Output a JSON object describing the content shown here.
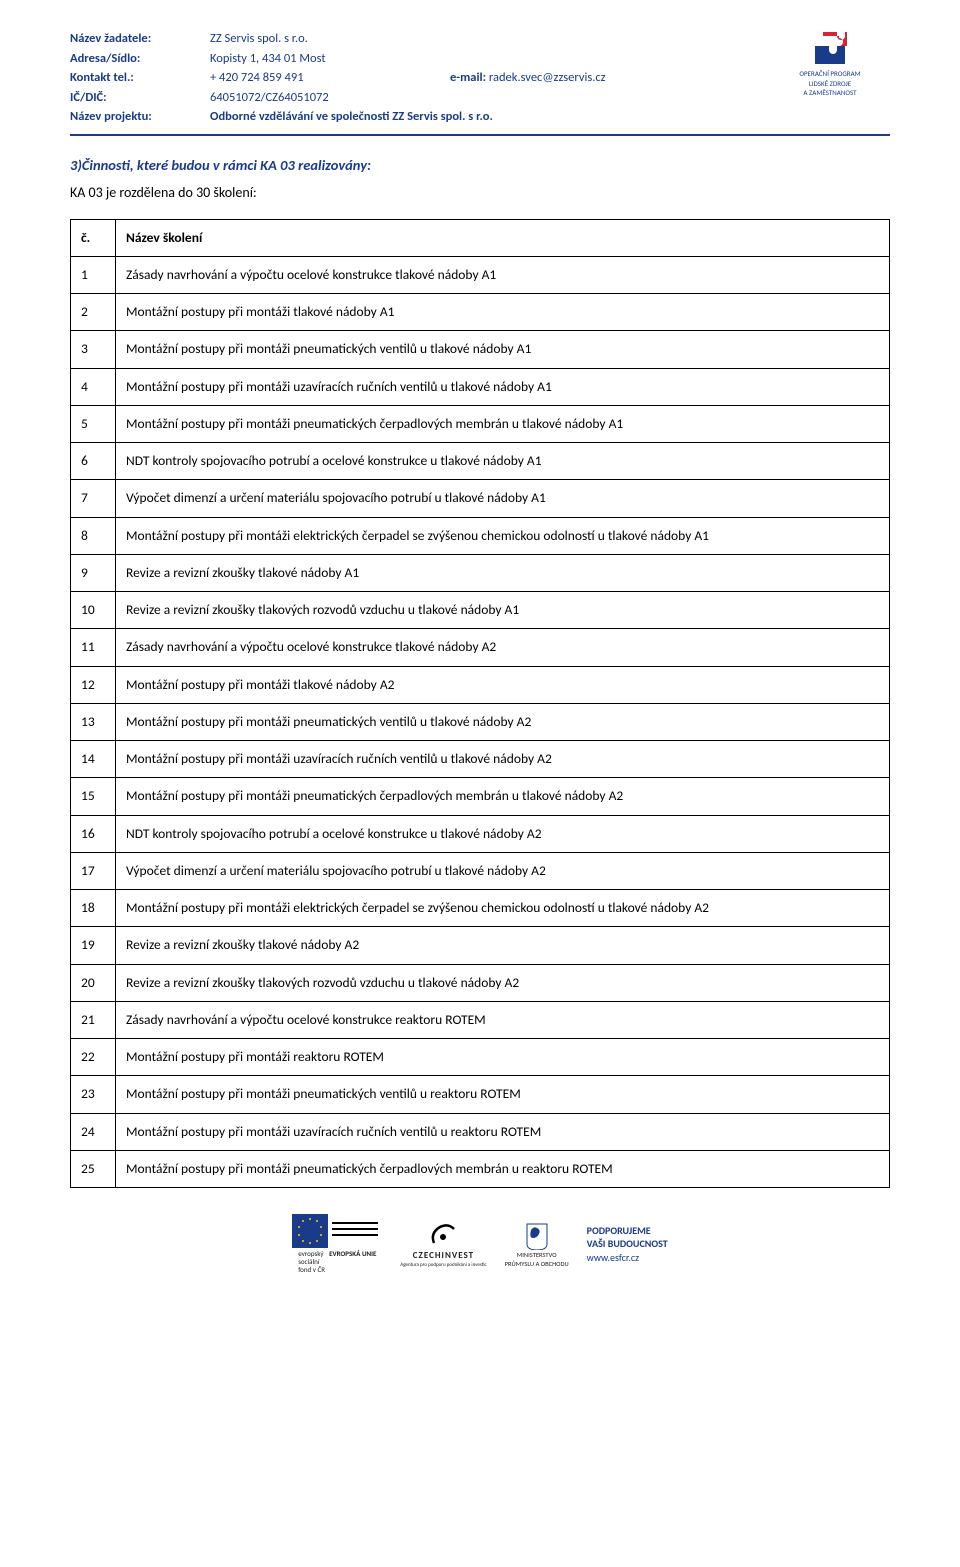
{
  "colors": {
    "accent": "#1a3a8a",
    "border": "#000000",
    "red": "#d22730",
    "background": "#ffffff"
  },
  "header": {
    "rows": [
      {
        "label": "Název žadatele:",
        "value": "ZZ Servis spol. s r.o."
      },
      {
        "label": "Adresa/Sídlo:",
        "value": "Kopisty 1, 434 01 Most"
      },
      {
        "label": "Kontakt tel.:",
        "value": "+ 420 724 859 491",
        "email_label": "e-mail:",
        "email_value": "radek.svec@zzservis.cz"
      },
      {
        "label": "IČ/DIČ:",
        "value": "64051072/CZ64051072"
      },
      {
        "label": "Název projektu:",
        "value": "Odborné vzdělávání ve společnosti ZZ Servis spol. s r.o.",
        "bold": true
      }
    ],
    "logo": {
      "line1": "OPERAČNÍ PROGRAM",
      "line2": "LIDSKÉ ZDROJE",
      "line3": "A ZAMĚSTNANOST"
    }
  },
  "section": {
    "title": "3)Činnosti, které budou v rámci KA 03 realizovány:",
    "subtitle": "KA 03 je rozdělena do 30 školení:"
  },
  "table": {
    "columns": [
      "č.",
      "Název školení"
    ],
    "rows": [
      [
        "1",
        "Zásady navrhování a výpočtu ocelové konstrukce tlakové nádoby A1"
      ],
      [
        "2",
        "Montážní postupy při montáži tlakové nádoby A1"
      ],
      [
        "3",
        "Montážní postupy při montáži pneumatických ventilů u tlakové nádoby A1"
      ],
      [
        "4",
        "Montážní postupy při montáži uzavíracích ručních ventilů u tlakové nádoby A1"
      ],
      [
        "5",
        "Montážní postupy při montáži pneumatických čerpadlových membrán u tlakové nádoby A1"
      ],
      [
        "6",
        "NDT kontroly spojovacího potrubí a ocelové konstrukce u tlakové nádoby A1"
      ],
      [
        "7",
        "Výpočet dimenzí a určení materiálu spojovacího potrubí u tlakové nádoby A1"
      ],
      [
        "8",
        "Montážní postupy při montáži elektrických čerpadel se zvýšenou chemickou odolností u tlakové nádoby A1"
      ],
      [
        "9",
        "Revize a revizní zkoušky tlakové nádoby A1"
      ],
      [
        "10",
        "Revize a revizní zkoušky tlakových rozvodů vzduchu u tlakové nádoby A1"
      ],
      [
        "11",
        "Zásady navrhování a výpočtu ocelové konstrukce tlakové nádoby A2"
      ],
      [
        "12",
        "Montážní postupy při montáži tlakové nádoby A2"
      ],
      [
        "13",
        "Montážní postupy při montáži pneumatických ventilů u tlakové nádoby A2"
      ],
      [
        "14",
        "Montážní postupy při montáži uzavíracích ručních ventilů u tlakové nádoby A2"
      ],
      [
        "15",
        "Montážní postupy při montáži pneumatických čerpadlových membrán u tlakové nádoby A2"
      ],
      [
        "16",
        "NDT kontroly spojovacího potrubí a ocelové konstrukce u tlakové nádoby A2"
      ],
      [
        "17",
        "Výpočet dimenzí a určení materiálu spojovacího potrubí u tlakové nádoby A2"
      ],
      [
        "18",
        "Montážní postupy při montáži elektrických čerpadel se zvýšenou chemickou odolností u tlakové nádoby A2"
      ],
      [
        "19",
        "Revize a revizní zkoušky tlakové nádoby A2"
      ],
      [
        "20",
        "Revize a revizní zkoušky tlakových rozvodů vzduchu u tlakové nádoby A2"
      ],
      [
        "21",
        "Zásady navrhování a výpočtu ocelové konstrukce reaktoru ROTEM"
      ],
      [
        "22",
        "Montážní postupy při montáži reaktoru ROTEM"
      ],
      [
        "23",
        "Montážní postupy při montáži pneumatických ventilů u reaktoru ROTEM"
      ],
      [
        "24",
        "Montážní postupy při montáži uzavíracích ručních ventilů u reaktoru ROTEM"
      ],
      [
        "25",
        "Montážní postupy při montáži pneumatických čerpadlových membrán u reaktoru ROTEM"
      ]
    ]
  },
  "footer": {
    "esf": {
      "l1": "evropský",
      "l2": "sociální",
      "l3": "fond v ČR",
      "l4": "EVROPSKÁ UNIE"
    },
    "czechinvest": "CZECHINVEST",
    "czechinvest_sub": "Agentura pro podporu podnikání a investic",
    "ministry": {
      "l1": "MINISTERSTVO",
      "l2": "PRŮMYSLU A OBCHODU"
    },
    "support": {
      "l1": "PODPORUJEME",
      "l2": "VAŠI BUDOUCNOST",
      "l3": "www.esfcr.cz"
    }
  }
}
